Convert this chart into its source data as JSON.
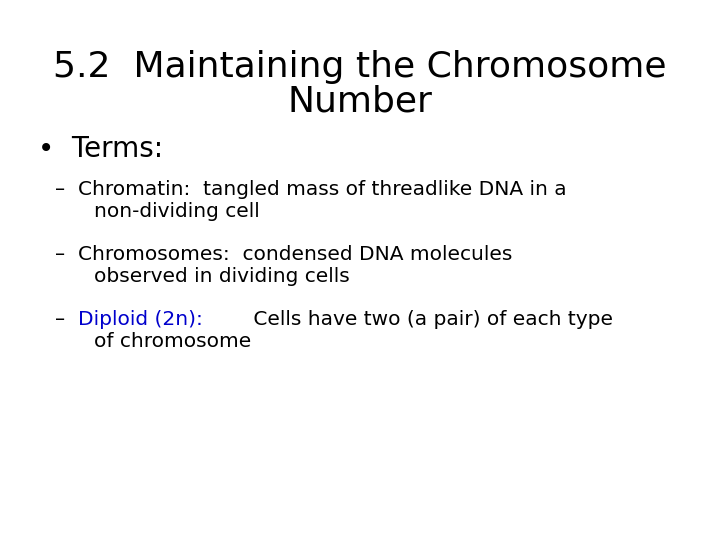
{
  "background_color": "#ffffff",
  "title_line1": "5.2  Maintaining the Chromosome",
  "title_line2": "Number",
  "title_color": "#000000",
  "title_fontsize": 26,
  "bullet_label": "•  Terms:",
  "bullet_color": "#000000",
  "bullet_fontsize": 20,
  "sub_fontsize": 14.5,
  "dash_color": "#000000",
  "blue_color": "#0000cc",
  "item1_line1": "Chromatin:  tangled mass of threadlike DNA in a",
  "item1_line2": "non-dividing cell",
  "item2_line1": "Chromosomes:  condensed DNA molecules",
  "item2_line2": "observed in dividing cells",
  "item3_blue": "Diploid (2n): ",
  "item3_black1": " Cells have two (a pair) of each type",
  "item3_line2": "of chromosome",
  "font": "DejaVu Sans"
}
